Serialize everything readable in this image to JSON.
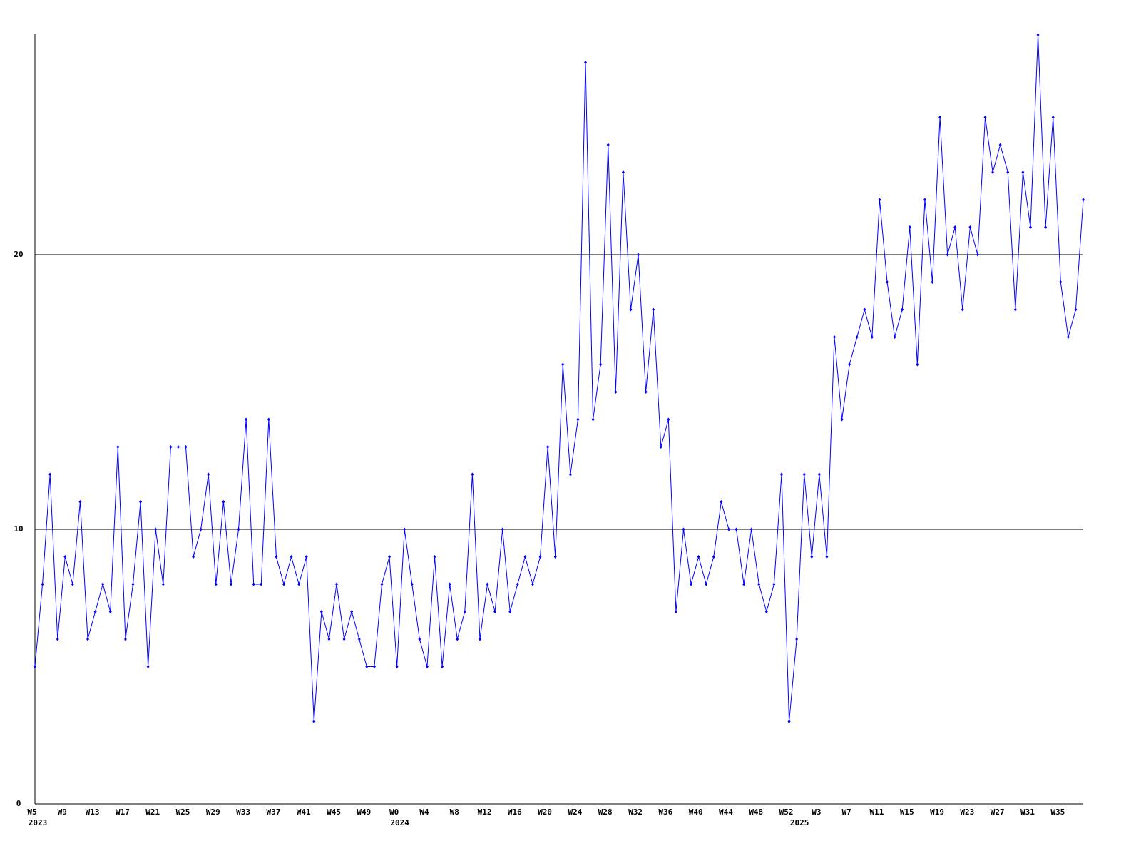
{
  "chart_data": {
    "type": "line",
    "categories": [
      "W5",
      null,
      null,
      null,
      "W9",
      null,
      null,
      null,
      "W13",
      null,
      null,
      null,
      "W17",
      null,
      null,
      null,
      "W21",
      null,
      null,
      null,
      "W25",
      null,
      null,
      null,
      "W29",
      null,
      null,
      null,
      "W33",
      null,
      null,
      null,
      "W37",
      null,
      null,
      null,
      "W41",
      null,
      null,
      null,
      "W45",
      null,
      null,
      null,
      "W49",
      null,
      null,
      null,
      "W0",
      null,
      null,
      null,
      "W4",
      null,
      null,
      null,
      "W8",
      null,
      null,
      null,
      "W12",
      null,
      null,
      null,
      "W16",
      null,
      null,
      null,
      "W20",
      null,
      null,
      null,
      "W24",
      null,
      null,
      null,
      "W28",
      null,
      null,
      null,
      "W32",
      null,
      null,
      null,
      "W36",
      null,
      null,
      null,
      "W40",
      null,
      null,
      null,
      "W44",
      null,
      null,
      null,
      "W48",
      null,
      null,
      null,
      "W52",
      null,
      null,
      null,
      "W3",
      null,
      null,
      null,
      "W7",
      null,
      null,
      null,
      "W11",
      null,
      null,
      null,
      "W15",
      null,
      null,
      null,
      "W19",
      null,
      null,
      null,
      "W23",
      null,
      null,
      null,
      "W27",
      null,
      null,
      null,
      "W31",
      null,
      null,
      null,
      "W35",
      null,
      null,
      null
    ],
    "year_labels": [
      {
        "label": "2023",
        "start": 0
      },
      {
        "label": "2024",
        "start": 48
      },
      {
        "label": "2025",
        "start": 101
      }
    ],
    "series": [
      {
        "color": "#0000ff",
        "values": [
          5,
          8,
          12,
          6,
          9,
          8,
          11,
          6,
          7,
          8,
          7,
          13,
          6,
          8,
          11,
          5,
          10,
          8,
          13,
          13,
          13,
          9,
          10,
          12,
          8,
          11,
          8,
          10,
          14,
          8,
          8,
          14,
          9,
          8,
          9,
          8,
          9,
          3,
          7,
          6,
          8,
          6,
          7,
          6,
          5,
          5,
          8,
          9,
          5,
          10,
          8,
          6,
          5,
          9,
          5,
          8,
          6,
          7,
          12,
          6,
          8,
          7,
          10,
          7,
          8,
          9,
          8,
          9,
          13,
          9,
          16,
          12,
          14,
          27,
          14,
          16,
          24,
          15,
          23,
          18,
          20,
          15,
          18,
          13,
          14,
          7,
          10,
          8,
          9,
          8,
          9,
          11,
          10,
          10,
          8,
          10,
          8,
          7,
          8,
          12,
          3,
          6,
          12,
          9,
          12,
          9,
          17,
          14,
          16,
          17,
          18,
          17,
          22,
          19,
          17,
          18,
          21,
          16,
          22,
          19,
          25,
          20,
          21,
          18,
          21,
          20,
          25,
          23,
          24,
          23,
          18,
          23,
          21,
          28,
          21,
          25,
          19,
          17,
          18,
          22
        ]
      }
    ],
    "ylim": [
      0,
      28
    ],
    "yticks": [
      0,
      10,
      20
    ],
    "grid": true
  }
}
